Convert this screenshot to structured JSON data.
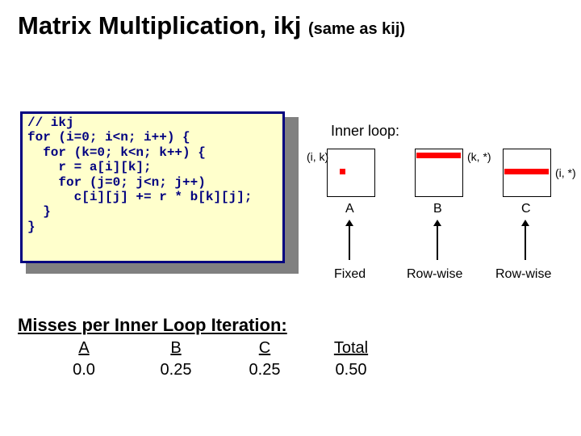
{
  "title_main": "Matrix Multiplication, ikj ",
  "title_sub": "(same as kij)",
  "code": "// ikj\nfor (i=0; i<n; i++) {\n  for (k=0; k<n; k++) {\n    r = a[i][k];\n    for (j=0; j<n; j++)\n      c[i][j] += r * b[k][j];\n  }\n}",
  "inner_loop_label": "Inner loop:",
  "matrices": {
    "A": {
      "coord": "(i, k)",
      "label": "A",
      "access": "Fixed"
    },
    "B": {
      "coord": "(k, *)",
      "label": "B",
      "access": "Row-wise"
    },
    "C": {
      "coord": "(i, *)",
      "label": "C",
      "access": "Row-wise"
    }
  },
  "misses": {
    "title": "Misses per Inner Loop Iteration:",
    "cols": {
      "A": {
        "head": "A",
        "val": "0.0"
      },
      "B": {
        "head": "B",
        "val": "0.25"
      },
      "C": {
        "head": "C",
        "val": "0.25"
      },
      "T": {
        "head": "Total",
        "val": "0.50"
      }
    }
  },
  "colors": {
    "code_bg": "#ffffcc",
    "code_border": "#000080",
    "code_text": "#000080",
    "highlight": "#ff0000",
    "shadow": "#808080"
  }
}
